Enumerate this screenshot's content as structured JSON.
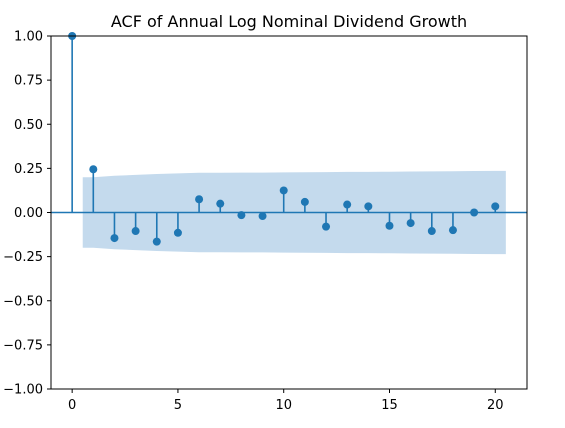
{
  "chart_data": {
    "type": "stem",
    "title": "ACF of Annual Log Nominal Dividend Growth",
    "xlabel": "",
    "ylabel": "",
    "xlim": [
      -1,
      21.5
    ],
    "ylim": [
      -1.0,
      1.0
    ],
    "x_ticks": [
      0,
      5,
      10,
      15,
      20
    ],
    "y_ticks": [
      -1.0,
      -0.75,
      -0.5,
      -0.25,
      0.0,
      0.25,
      0.5,
      0.75,
      1.0
    ],
    "x_tick_labels": [
      "0",
      "5",
      "10",
      "15",
      "20"
    ],
    "y_tick_labels": [
      "−1.00",
      "−0.75",
      "−0.50",
      "−0.25",
      "0.00",
      "0.25",
      "0.50",
      "0.75",
      "1.00"
    ],
    "grid": false,
    "legend": "none",
    "series": [
      {
        "lags": [
          0,
          1,
          2,
          3,
          4,
          5,
          6,
          7,
          8,
          9,
          10,
          11,
          12,
          13,
          14,
          15,
          16,
          17,
          18,
          19,
          20
        ],
        "values": [
          1.0,
          0.245,
          -0.145,
          -0.105,
          -0.165,
          -0.115,
          0.075,
          0.05,
          -0.015,
          -0.02,
          0.125,
          0.06,
          -0.08,
          0.045,
          0.035,
          -0.075,
          -0.06,
          -0.105,
          -0.1,
          0.0,
          0.035
        ]
      }
    ],
    "confidence_band": {
      "lags": [
        0.5,
        1,
        2,
        3,
        4,
        5,
        6,
        7,
        8,
        9,
        10,
        11,
        12,
        13,
        14,
        15,
        16,
        17,
        18,
        19,
        20,
        20.5
      ],
      "upper": [
        0.2,
        0.2,
        0.208,
        0.213,
        0.218,
        0.222,
        0.225,
        0.225,
        0.226,
        0.226,
        0.227,
        0.228,
        0.229,
        0.23,
        0.23,
        0.231,
        0.232,
        0.233,
        0.234,
        0.235,
        0.236,
        0.236
      ]
    },
    "colors": {
      "stem": "#1f77b4",
      "band": "#c4daed",
      "axis": "#000000"
    }
  }
}
